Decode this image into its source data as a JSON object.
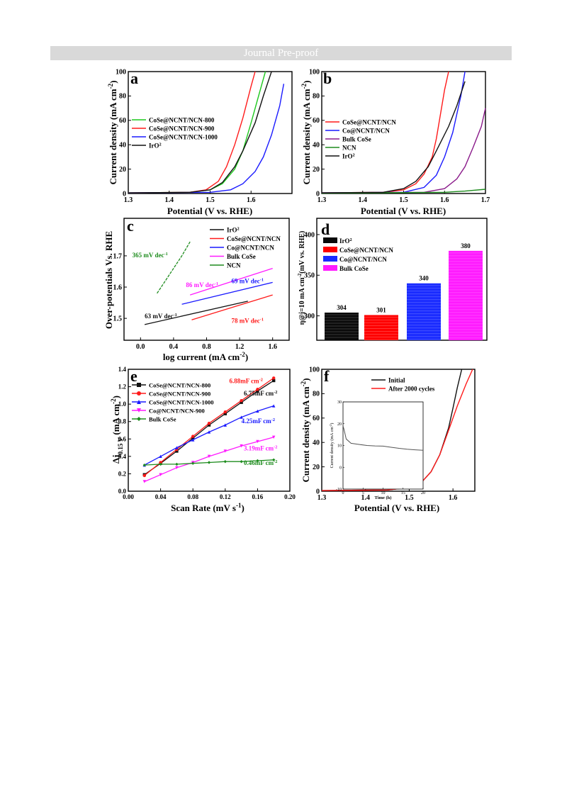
{
  "header": {
    "banner": "Journal Pre-proof"
  },
  "colors": {
    "black": "#111111",
    "red": "#ff1a1a",
    "blue": "#1a1aff",
    "green": "#1e8c1e",
    "magenta": "#ff1aff",
    "purple": "#8a1a8a",
    "barred": "#ff0000",
    "barblue": "#1a2bff"
  },
  "chart_data": [
    {
      "panel": "a",
      "type": "line",
      "xlabel": "Potential (V vs. RHE)",
      "ylabel": "Current density (mA cm-2)",
      "ylabel_parts": [
        "Current density (mA cm",
        "-2",
        ")"
      ],
      "xlim": [
        1.3,
        1.7
      ],
      "ylim": [
        0,
        100
      ],
      "xticks": [
        "1.3",
        "1.4",
        "1.5",
        "1.6"
      ],
      "yticks": [
        "0",
        "20",
        "40",
        "60",
        "80",
        "100"
      ],
      "series": [
        {
          "name": "CoSe@NCNT/NCN-800",
          "color": "#1ec81e",
          "points": [
            [
              1.3,
              0.5
            ],
            [
              1.45,
              1
            ],
            [
              1.5,
              3
            ],
            [
              1.53,
              8
            ],
            [
              1.56,
              20
            ],
            [
              1.58,
              35
            ],
            [
              1.6,
              58
            ],
            [
              1.62,
              82
            ],
            [
              1.635,
              100
            ]
          ]
        },
        {
          "name": "CoSe@NCNT/NCN-900",
          "color": "#ff1a1a",
          "points": [
            [
              1.3,
              0.5
            ],
            [
              1.45,
              1
            ],
            [
              1.49,
              3
            ],
            [
              1.52,
              10
            ],
            [
              1.54,
              22
            ],
            [
              1.56,
              40
            ],
            [
              1.58,
              62
            ],
            [
              1.6,
              88
            ],
            [
              1.61,
              100
            ]
          ]
        },
        {
          "name": "CoSe@NCNT/NCN-1000",
          "color": "#1a1aff",
          "points": [
            [
              1.3,
              0.5
            ],
            [
              1.5,
              1
            ],
            [
              1.55,
              3
            ],
            [
              1.58,
              8
            ],
            [
              1.61,
              18
            ],
            [
              1.63,
              30
            ],
            [
              1.65,
              48
            ],
            [
              1.67,
              72
            ],
            [
              1.68,
              90
            ]
          ]
        },
        {
          "name": "IrO2",
          "name_parts": [
            "IrO",
            "2"
          ],
          "color": "#111111",
          "points": [
            [
              1.3,
              0.5
            ],
            [
              1.45,
              1
            ],
            [
              1.5,
              3
            ],
            [
              1.53,
              9
            ],
            [
              1.56,
              22
            ],
            [
              1.58,
              35
            ],
            [
              1.61,
              58
            ],
            [
              1.63,
              80
            ],
            [
              1.65,
              100
            ]
          ]
        }
      ]
    },
    {
      "panel": "b",
      "type": "line",
      "xlabel": "Potential (V vs. RHE)",
      "ylabel": "Current density (mA cm-2)",
      "ylabel_parts": [
        "Current density (mA cm",
        "-2",
        ")"
      ],
      "xlim": [
        1.3,
        1.7
      ],
      "ylim": [
        0,
        100
      ],
      "xticks": [
        "1.3",
        "1.4",
        "1.5",
        "1.6",
        "1.7"
      ],
      "yticks": [
        "0",
        "20",
        "40",
        "60",
        "80",
        "100"
      ],
      "series": [
        {
          "name": "CoSe@NCNT/NCN",
          "color": "#ff1a1a",
          "points": [
            [
              1.3,
              0.5
            ],
            [
              1.45,
              1
            ],
            [
              1.5,
              3
            ],
            [
              1.53,
              8
            ],
            [
              1.55,
              16
            ],
            [
              1.57,
              30
            ],
            [
              1.58,
              45
            ],
            [
              1.59,
              65
            ],
            [
              1.6,
              85
            ],
            [
              1.61,
              100
            ]
          ]
        },
        {
          "name": "Co@NCNT/NCN",
          "color": "#1a1aff",
          "points": [
            [
              1.3,
              0.5
            ],
            [
              1.5,
              1
            ],
            [
              1.55,
              5
            ],
            [
              1.58,
              15
            ],
            [
              1.6,
              30
            ],
            [
              1.62,
              50
            ],
            [
              1.64,
              80
            ],
            [
              1.65,
              100
            ]
          ]
        },
        {
          "name": "Bulk CoSe",
          "color": "#8a1a8a",
          "points": [
            [
              1.3,
              0.5
            ],
            [
              1.55,
              1
            ],
            [
              1.6,
              4
            ],
            [
              1.63,
              12
            ],
            [
              1.65,
              22
            ],
            [
              1.67,
              38
            ],
            [
              1.69,
              55
            ],
            [
              1.7,
              70
            ]
          ]
        },
        {
          "name": "NCN",
          "color": "#1e8c1e",
          "points": [
            [
              1.3,
              0.3
            ],
            [
              1.6,
              1
            ],
            [
              1.65,
              2
            ],
            [
              1.7,
              3.5
            ]
          ]
        },
        {
          "name": "IrO2",
          "name_parts": [
            "IrO",
            "2"
          ],
          "color": "#111111",
          "points": [
            [
              1.3,
              0.5
            ],
            [
              1.45,
              1
            ],
            [
              1.5,
              4
            ],
            [
              1.53,
              10
            ],
            [
              1.56,
              22
            ],
            [
              1.58,
              35
            ],
            [
              1.61,
              55
            ],
            [
              1.63,
              72
            ],
            [
              1.65,
              92
            ]
          ]
        }
      ]
    },
    {
      "panel": "c",
      "type": "line",
      "xlabel": "log current (mA cm-2)",
      "ylabel": "Over-potentials Vs. RHE",
      "xlabel_parts": [
        "log current (mA cm",
        "-2",
        ")"
      ],
      "xlim": [
        -0.2,
        1.8
      ],
      "ylim": [
        1.43,
        1.82
      ],
      "xticks": [
        "0.0",
        "0.4",
        "0.8",
        "1.2",
        "1.6"
      ],
      "yticks": [
        "1.5",
        "1.6",
        "1.7"
      ],
      "series": [
        {
          "name": "IrO2",
          "name_parts": [
            "IrO",
            "2"
          ],
          "color": "#111111",
          "points": [
            [
              0.05,
              1.48
            ],
            [
              1.3,
              1.555
            ]
          ]
        },
        {
          "name": "CoSe@NCNT/NCN",
          "color": "#ff1a1a",
          "points": [
            [
              0.62,
              1.495
            ],
            [
              1.6,
              1.575
            ]
          ]
        },
        {
          "name": "Co@NCNT/NCN",
          "color": "#1a1aff",
          "points": [
            [
              0.5,
              1.545
            ],
            [
              1.6,
              1.615
            ]
          ]
        },
        {
          "name": "Bulk CoSe",
          "color": "#ff1aff",
          "points": [
            [
              0.6,
              1.575
            ],
            [
              1.6,
              1.66
            ]
          ]
        },
        {
          "name": "NCN",
          "color": "#1e8c1e",
          "points": [
            [
              0.2,
              1.58
            ],
            [
              0.3,
              1.62
            ],
            [
              0.4,
              1.66
            ],
            [
              0.5,
              1.7
            ],
            [
              0.6,
              1.745
            ]
          ]
        }
      ],
      "annotations": [
        {
          "text": "365 mV dec-1",
          "parts": [
            "365 mV dec",
            "-1"
          ],
          "color": "#1e8c1e",
          "x": -0.1,
          "y": 1.695
        },
        {
          "text": "86 mV dec-1",
          "parts": [
            "86 mV dec",
            "-1"
          ],
          "color": "#ff1aff",
          "x": 0.55,
          "y": 1.6
        },
        {
          "text": "69 mV dec-1",
          "parts": [
            "69 mV dec",
            "-1"
          ],
          "color": "#1a1aff",
          "x": 1.1,
          "y": 1.612
        },
        {
          "text": "63 mV dec-1",
          "parts": [
            "63 mV dec",
            "-1"
          ],
          "color": "#111111",
          "x": 0.05,
          "y": 1.5
        },
        {
          "text": "78 mV dec-1",
          "parts": [
            "78 mV dec",
            "-1"
          ],
          "color": "#ff1a1a",
          "x": 1.1,
          "y": 1.485
        }
      ]
    },
    {
      "panel": "d",
      "type": "bar",
      "ylabel": "η@j=10 mA cm-2 (mV vs. RHE)",
      "ylabel_parts": [
        "η@j=10 mA cm",
        "-2",
        "(mV vs. RHE)"
      ],
      "ylim": [
        270,
        420
      ],
      "yticks": [
        "300",
        "350",
        "400"
      ],
      "categories": [
        "IrO2",
        "CoSe@NCNT/NCN",
        "Co@NCNT/NCN",
        "Bulk CoSe"
      ],
      "category_parts": [
        [
          "IrO",
          "2"
        ],
        [
          "CoSe@NCNT/NCN",
          ""
        ],
        [
          "Co@NCNT/NCN",
          ""
        ],
        [
          "Bulk CoSe",
          ""
        ]
      ],
      "values": [
        304,
        301,
        340,
        380
      ],
      "value_labels": [
        "304",
        "301",
        "340",
        "380"
      ],
      "bar_colors": [
        "#0a0a0a",
        "#ff0000",
        "#1a2bff",
        "#ff1aff"
      ]
    },
    {
      "panel": "e",
      "type": "line",
      "xlabel": "Scan Rate (mV s-1)",
      "ylabel": "Δj0.15 V (mA cm-2)",
      "xlabel_parts": [
        "Scan Rate (mV s",
        "-1",
        ")"
      ],
      "ylabel_parts": [
        "Δj",
        "0.15 V",
        " (mA cm",
        "-2",
        ")"
      ],
      "xlim": [
        0.0,
        0.2
      ],
      "ylim": [
        0.0,
        1.4
      ],
      "xticks": [
        "0.00",
        "0.04",
        "0.08",
        "0.12",
        "0.16",
        "0.20"
      ],
      "yticks": [
        "0.0",
        "0.2",
        "0.4",
        "0.6",
        "0.8",
        "1.0",
        "1.2",
        "1.4"
      ],
      "x": [
        0.02,
        0.04,
        0.06,
        0.08,
        0.1,
        0.12,
        0.14,
        0.16,
        0.18
      ],
      "series": [
        {
          "name": "CoSe@NCNT/NCN-800",
          "color": "#111111",
          "marker": "square",
          "values": [
            0.19,
            0.32,
            0.46,
            0.61,
            0.76,
            0.89,
            1.02,
            1.15,
            1.27
          ]
        },
        {
          "name": "CoSe@NCNT/NCN-900",
          "color": "#ff1a1a",
          "marker": "circle",
          "values": [
            0.18,
            0.33,
            0.48,
            0.63,
            0.78,
            0.91,
            1.04,
            1.17,
            1.3
          ]
        },
        {
          "name": "CoSe@NCNT/NCN-1000",
          "color": "#1a1aff",
          "marker": "triangle",
          "values": [
            0.3,
            0.4,
            0.5,
            0.59,
            0.68,
            0.76,
            0.85,
            0.92,
            0.98
          ]
        },
        {
          "name": "Co@NCNT/NCN-900",
          "color": "#ff1aff",
          "marker": "tri-down",
          "values": [
            0.11,
            0.19,
            0.27,
            0.33,
            0.4,
            0.46,
            0.52,
            0.57,
            0.62
          ]
        },
        {
          "name": "Bulk CoSe",
          "color": "#1e8c1e",
          "marker": "diamond",
          "values": [
            0.3,
            0.31,
            0.31,
            0.32,
            0.33,
            0.34,
            0.34,
            0.35,
            0.36
          ]
        }
      ],
      "annotations": [
        {
          "text": "6.88mF cm-2",
          "parts": [
            "6.88mF cm",
            "-2"
          ],
          "color": "#ff1a1a",
          "x": 0.125,
          "y": 1.24
        },
        {
          "text": "6.75mF cm-2",
          "parts": [
            "6.75mF cm",
            "-2"
          ],
          "color": "#111111",
          "x": 0.143,
          "y": 1.1
        },
        {
          "text": "4.25mF cm-2",
          "parts": [
            "4.25mF cm",
            "-2"
          ],
          "color": "#1a1aff",
          "x": 0.14,
          "y": 0.78
        },
        {
          "text": "3.19mF cm-2",
          "parts": [
            "3.19mF cm",
            "-2"
          ],
          "color": "#ff1aff",
          "x": 0.143,
          "y": 0.47
        },
        {
          "text": "0.46mF cm-2",
          "parts": [
            "0.46mF cm",
            "-2"
          ],
          "color": "#1e8c1e",
          "x": 0.143,
          "y": 0.3
        }
      ]
    },
    {
      "panel": "f",
      "type": "line",
      "xlabel": "Potential (V vs. RHE)",
      "ylabel": "Current density (mA cm-2)",
      "ylabel_parts": [
        "Current density (mA cm",
        "-2",
        ")"
      ],
      "xlim": [
        1.3,
        1.65
      ],
      "ylim": [
        0,
        100
      ],
      "xticks": [
        "1.3",
        "1.4",
        "1.5",
        "1.6"
      ],
      "yticks": [
        "0",
        "20",
        "40",
        "60",
        "80",
        "100"
      ],
      "series": [
        {
          "name": "Initial",
          "color": "#111111",
          "points": [
            [
              1.3,
              0.5
            ],
            [
              1.45,
              1
            ],
            [
              1.5,
              3
            ],
            [
              1.53,
              8
            ],
            [
              1.55,
              16
            ],
            [
              1.57,
              30
            ],
            [
              1.59,
              52
            ],
            [
              1.6,
              68
            ],
            [
              1.61,
              85
            ],
            [
              1.62,
              100
            ]
          ]
        },
        {
          "name": "After 2000 cycles",
          "color": "#ff1a1a",
          "points": [
            [
              1.3,
              0.5
            ],
            [
              1.45,
              1
            ],
            [
              1.5,
              3
            ],
            [
              1.53,
              8
            ],
            [
              1.55,
              16
            ],
            [
              1.57,
              30
            ],
            [
              1.59,
              50
            ],
            [
              1.61,
              70
            ],
            [
              1.63,
              88
            ],
            [
              1.645,
              100
            ]
          ]
        }
      ],
      "inset": {
        "type": "line",
        "xlabel": "Time (h)",
        "ylabel": "Current density (mA cm-2)",
        "ylabel_parts": [
          "Current density (mA cm",
          "-2",
          ")"
        ],
        "xlim": [
          0,
          20
        ],
        "ylim": [
          -10,
          30
        ],
        "xticks": [
          "0",
          "5",
          "10",
          "15",
          "20"
        ],
        "yticks": [
          "-10",
          "0",
          "10",
          "20",
          "30"
        ],
        "points": [
          [
            0,
            19
          ],
          [
            0.3,
            17
          ],
          [
            0.8,
            13
          ],
          [
            2,
            11
          ],
          [
            4,
            10.5
          ],
          [
            6,
            10
          ],
          [
            8,
            9.8
          ],
          [
            10,
            9.7
          ],
          [
            12,
            9.2
          ],
          [
            14,
            8.7
          ],
          [
            16,
            8.3
          ],
          [
            18,
            8
          ],
          [
            20,
            7.8
          ]
        ]
      }
    }
  ]
}
